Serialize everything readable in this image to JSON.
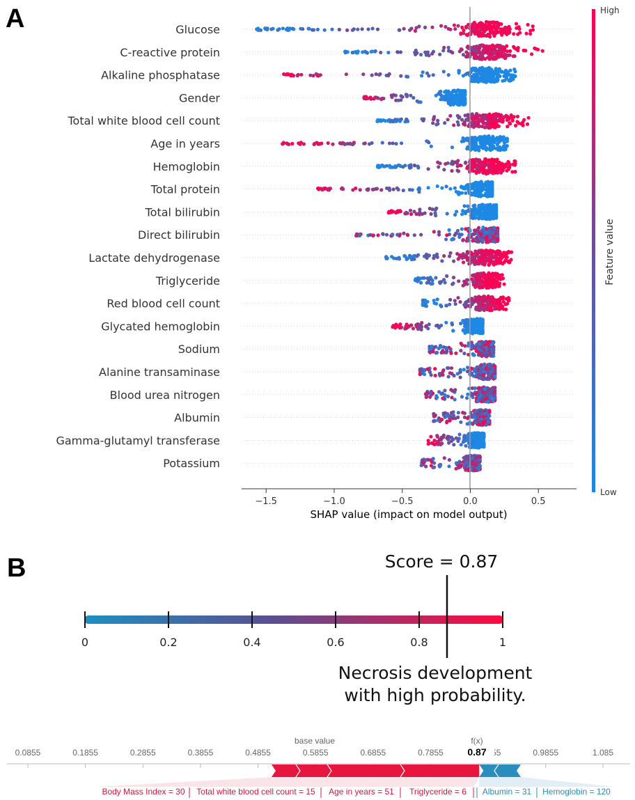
{
  "panel_a_letter": "A",
  "panel_b_letter": "B",
  "colors": {
    "low": "#1e88e5",
    "mid": "#8a4fa8",
    "high": "#ff0052",
    "blue": "#2b8cbe",
    "red": "#e8163f"
  },
  "chart_data": [
    {
      "type": "scatter",
      "subtype": "shap-beeswarm",
      "features": [
        {
          "name": "Glucose",
          "min": -1.57,
          "max": 0.48,
          "high_side": "right"
        },
        {
          "name": "C-reactive protein",
          "min": -0.92,
          "max": 0.66,
          "high_side": "right"
        },
        {
          "name": "Alkaline phosphatase",
          "min": -1.37,
          "max": 0.33,
          "high_side": "left"
        },
        {
          "name": "Gender",
          "min": -0.78,
          "max": -0.04,
          "high_side": "left"
        },
        {
          "name": "Total white blood cell count",
          "min": -0.69,
          "max": 0.45,
          "high_side": "right"
        },
        {
          "name": "Age in years",
          "min": -1.38,
          "max": 0.27,
          "high_side": "left"
        },
        {
          "name": "Hemoglobin",
          "min": -0.68,
          "max": 0.33,
          "high_side": "right"
        },
        {
          "name": "Total protein",
          "min": -1.12,
          "max": 0.16,
          "high_side": "left"
        },
        {
          "name": "Total bilirubin",
          "min": -0.6,
          "max": 0.19,
          "high_side": "left"
        },
        {
          "name": "Direct bilirubin",
          "min": -0.84,
          "max": 0.2,
          "high_side": "mixed"
        },
        {
          "name": "Lactate dehydrogenase",
          "min": -0.62,
          "max": 0.33,
          "high_side": "right"
        },
        {
          "name": "Triglyceride",
          "min": -0.41,
          "max": 0.25,
          "high_side": "right"
        },
        {
          "name": "Red blood cell count",
          "min": -0.35,
          "max": 0.29,
          "high_side": "right"
        },
        {
          "name": "Glycated hemoglobin",
          "min": -0.57,
          "max": 0.09,
          "high_side": "left"
        },
        {
          "name": "Sodium",
          "min": -0.3,
          "max": 0.17,
          "high_side": "mixed"
        },
        {
          "name": "Alanine transaminase",
          "min": -0.37,
          "max": 0.18,
          "high_side": "mixed"
        },
        {
          "name": "Blood urea nitrogen",
          "min": -0.33,
          "max": 0.18,
          "high_side": "mixed"
        },
        {
          "name": "Albumin",
          "min": -0.27,
          "max": 0.14,
          "high_side": "mixed"
        },
        {
          "name": "Gamma-glutamyl transferase",
          "min": -0.31,
          "max": 0.1,
          "high_side": "left"
        },
        {
          "name": "Potassium",
          "min": -0.36,
          "max": 0.07,
          "high_side": "mixed"
        }
      ],
      "x_ticks": [
        "−1.5",
        "−1.0",
        "−0.5",
        "0.0",
        "0.5"
      ],
      "x_tick_values": [
        -1.5,
        -1.0,
        -0.5,
        0.0,
        0.5
      ],
      "xlim": [
        -1.68,
        0.78
      ],
      "xlabel": "SHAP value (impact on model output)",
      "colorbar_label": "Feature value",
      "colorbar_high": "High",
      "colorbar_low": "Low"
    },
    {
      "type": "gauge",
      "title": "Score = 0.87",
      "score": 0.87,
      "ticks": [
        "0",
        "0.2",
        "0.4",
        "0.6",
        "0.8",
        "1"
      ],
      "tick_values": [
        0,
        0.2,
        0.4,
        0.6,
        0.8,
        1.0
      ],
      "caption_line1": "Necrosis development",
      "caption_line2": "with high probability."
    },
    {
      "type": "shap-force",
      "base_value_label": "base value",
      "fx_label": "f(x)",
      "fx_value": "0.87",
      "base_value": 0.535,
      "output_value": 0.87,
      "axis_ticks": [
        "0.0855",
        "0.1855",
        "0.2855",
        "0.3855",
        "0.4855",
        "0.5855",
        "0.6855",
        "0.7855",
        "0.8855",
        "0.9855",
        "1.085"
      ],
      "axis_tick_values": [
        0.0855,
        0.1855,
        0.2855,
        0.3855,
        0.4855,
        0.5855,
        0.6855,
        0.7855,
        0.8855,
        0.9855,
        1.085
      ],
      "red_labels": [
        "Body Mass Index = 30",
        "Total white blood cell count = 15",
        "Age in years = 51",
        "Triglyceride = 6"
      ],
      "blue_labels": [
        "Albumin = 31",
        "Hemoglobin = 120"
      ]
    }
  ]
}
